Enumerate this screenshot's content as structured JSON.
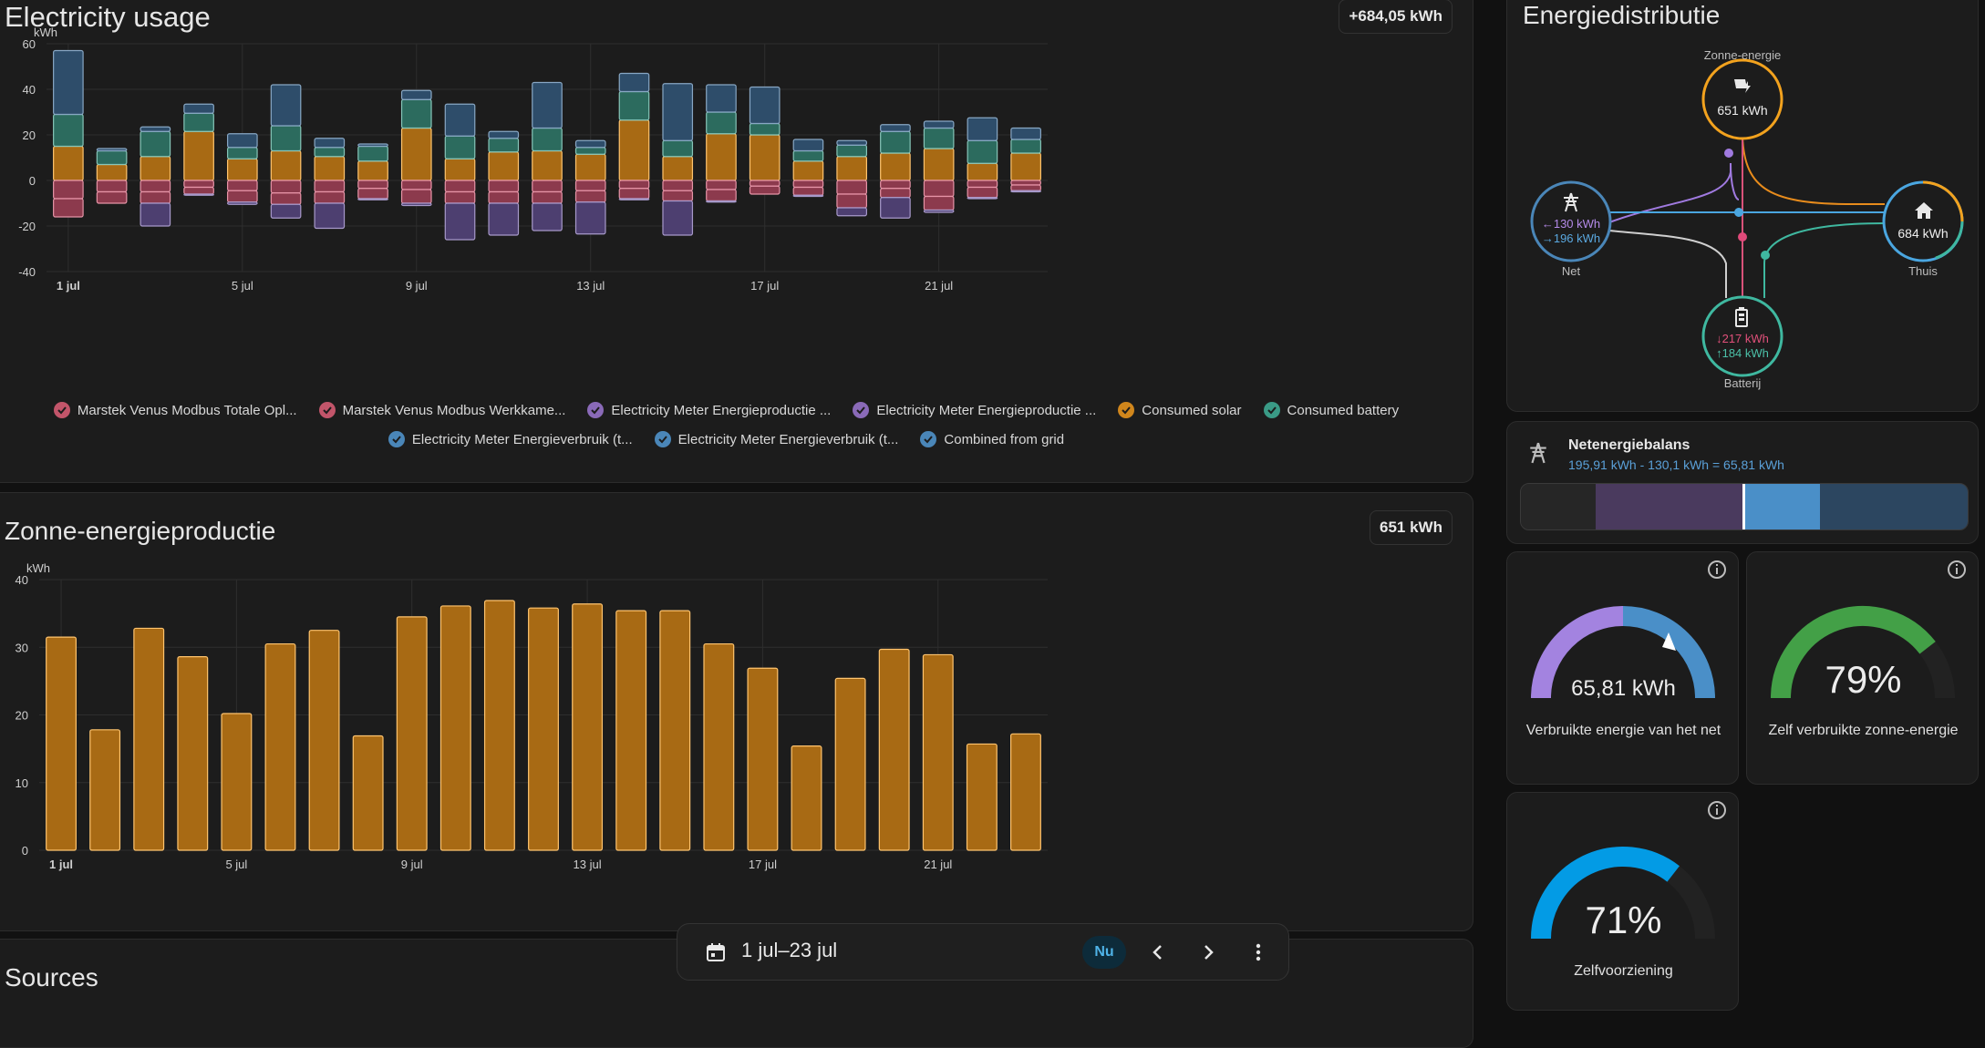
{
  "usage": {
    "title": "Electricity usage",
    "total": "+684,05 kWh",
    "unit": "kWh",
    "legend": [
      {
        "label": "Marstek Venus Modbus Totale Opl...",
        "color": "#c2556a"
      },
      {
        "label": "Marstek Venus Modbus Werkkame...",
        "color": "#c2556a"
      },
      {
        "label": "Electricity Meter Energieproductie ...",
        "color": "#8a6ab8"
      },
      {
        "label": "Electricity Meter Energieproductie ...",
        "color": "#8a6ab8"
      },
      {
        "label": "Consumed solar",
        "color": "#d0861c"
      },
      {
        "label": "Consumed battery",
        "color": "#3a9a86"
      },
      {
        "label": "Electricity Meter Energieverbruik (t...",
        "color": "#4a86b8"
      },
      {
        "label": "Electricity Meter Energieverbruik (t...",
        "color": "#4a86b8"
      },
      {
        "label": "Combined from grid",
        "color": "#4a86b8"
      }
    ]
  },
  "solar": {
    "title": "Zonne-energieproductie",
    "total": "651 kWh",
    "unit": "kWh"
  },
  "sources": {
    "title": "Sources"
  },
  "chart_data": [
    {
      "type": "bar",
      "title": "Electricity usage",
      "ylabel": "kWh",
      "ylim": [
        -40,
        60
      ],
      "yticks": [
        -40,
        -20,
        0,
        20,
        40,
        60
      ],
      "grid": true,
      "legend_position": "bottom",
      "x": [
        "1 jul",
        "2 jul",
        "3 jul",
        "4 jul",
        "5 jul",
        "6 jul",
        "7 jul",
        "8 jul",
        "9 jul",
        "10 jul",
        "11 jul",
        "12 jul",
        "13 jul",
        "14 jul",
        "15 jul",
        "16 jul",
        "17 jul",
        "18 jul",
        "19 jul",
        "20 jul",
        "21 jul",
        "22 jul",
        "23 jul"
      ],
      "xtick_labels": [
        "1 jul",
        "5 jul",
        "9 jul",
        "13 jul",
        "17 jul",
        "21 jul"
      ],
      "series": [
        {
          "name": "Consumed solar",
          "color": "#a86a14",
          "values": [
            15,
            7,
            10.5,
            21.5,
            9.5,
            13,
            10.5,
            8.5,
            23,
            9.5,
            12.5,
            13,
            11.5,
            26.5,
            10.5,
            20.5,
            20,
            8.5,
            10.5,
            12,
            14,
            7.5,
            12
          ]
        },
        {
          "name": "Consumed battery",
          "color": "#2c6b5e",
          "values": [
            14,
            6,
            11,
            8,
            5,
            11,
            4,
            6.5,
            12.5,
            10,
            6,
            10,
            3,
            12.5,
            7,
            9.5,
            5,
            4.5,
            5,
            9.5,
            9,
            10,
            6
          ]
        },
        {
          "name": "Combined from grid",
          "color": "#2e4d6a",
          "values": [
            28,
            1,
            2,
            4,
            6,
            18,
            4,
            1,
            4,
            14,
            3,
            20,
            3,
            8,
            25,
            12,
            16,
            5,
            2,
            3,
            3,
            10,
            5
          ]
        },
        {
          "name": "Marstek Venus Modbus Totale Opl...",
          "color": "#8c3a4d",
          "values": [
            -8,
            -5,
            -5,
            -3,
            -4.5,
            -5.5,
            -5,
            -3.5,
            -4,
            -5,
            -5,
            -5,
            -4.5,
            -3.5,
            -4.5,
            -4,
            -2.5,
            -3,
            -6,
            -3.5,
            -7,
            -3,
            -2
          ]
        },
        {
          "name": "Marstek Venus Modbus Werkkame...",
          "color": "#8c3a4d",
          "values": [
            -8,
            -5,
            -5,
            -3,
            -5,
            -5,
            -5,
            -4.5,
            -6,
            -5,
            -5,
            -5,
            -5,
            -4.5,
            -4.5,
            -5,
            -3.5,
            -3.5,
            -6,
            -4,
            -6,
            -4.5,
            -2.5
          ]
        },
        {
          "name": "Electricity Meter Energieproductie ...",
          "color": "#4d3f70",
          "values": [
            0,
            0,
            -10,
            -0.5,
            -1,
            -6,
            -11,
            -0.5,
            -1,
            -16,
            -14,
            -12,
            -14,
            -0.5,
            -15,
            -0.5,
            0,
            -0.5,
            -3.5,
            -9,
            -1,
            -0.5,
            -0.5
          ]
        }
      ]
    },
    {
      "type": "bar",
      "title": "Zonne-energieproductie",
      "ylabel": "kWh",
      "ylim": [
        0,
        40
      ],
      "yticks": [
        0,
        10,
        20,
        30,
        40
      ],
      "grid": true,
      "x": [
        "1 jul",
        "2 jul",
        "3 jul",
        "4 jul",
        "5 jul",
        "6 jul",
        "7 jul",
        "8 jul",
        "9 jul",
        "10 jul",
        "11 jul",
        "12 jul",
        "13 jul",
        "14 jul",
        "15 jul",
        "16 jul",
        "17 jul",
        "18 jul",
        "19 jul",
        "20 jul",
        "21 jul",
        "22 jul",
        "23 jul"
      ],
      "xtick_labels": [
        "1 jul",
        "5 jul",
        "9 jul",
        "13 jul",
        "17 jul",
        "21 jul"
      ],
      "series": [
        {
          "name": "",
          "color": "#a86a14",
          "values": [
            31.5,
            17.8,
            32.8,
            28.6,
            20.2,
            30.5,
            32.5,
            16.9,
            34.5,
            36.1,
            36.9,
            35.8,
            36.4,
            35.4,
            35.4,
            30.5,
            26.9,
            15.4,
            25.4,
            29.7,
            28.9,
            15.7,
            17.2
          ]
        }
      ]
    }
  ],
  "distribution": {
    "title": "Energiedistributie",
    "solar": {
      "label": "Zonne-energie",
      "value": "651 kWh"
    },
    "grid": {
      "label": "Net",
      "in": "←130 kWh",
      "out": "→196 kWh"
    },
    "home": {
      "label": "Thuis",
      "value": "684 kWh"
    },
    "battery": {
      "label": "Batterij",
      "in": "↓217 kWh",
      "out": "↑184 kWh"
    }
  },
  "balance": {
    "title": "Netenergiebalans",
    "formula": "195,91 kWh - 130,1 kWh = 65,81 kWh"
  },
  "gauges": {
    "grid_used": {
      "value": "65,81 kWh",
      "label": "Verbruikte energie van het net"
    },
    "self_consumed": {
      "value": "79%",
      "fraction": 0.79,
      "label": "Zelf verbruikte zonne-energie"
    },
    "self_sufficiency": {
      "value": "71%",
      "fraction": 0.71,
      "label": "Zelfvoorziening"
    }
  },
  "datepicker": {
    "range": "1 jul–23 jul",
    "now_label": "Nu",
    "calendar_icon": "calendar-icon",
    "prev_icon": "chevron-left-icon",
    "next_icon": "chevron-right-icon",
    "menu_icon": "dots-vertical-icon"
  }
}
